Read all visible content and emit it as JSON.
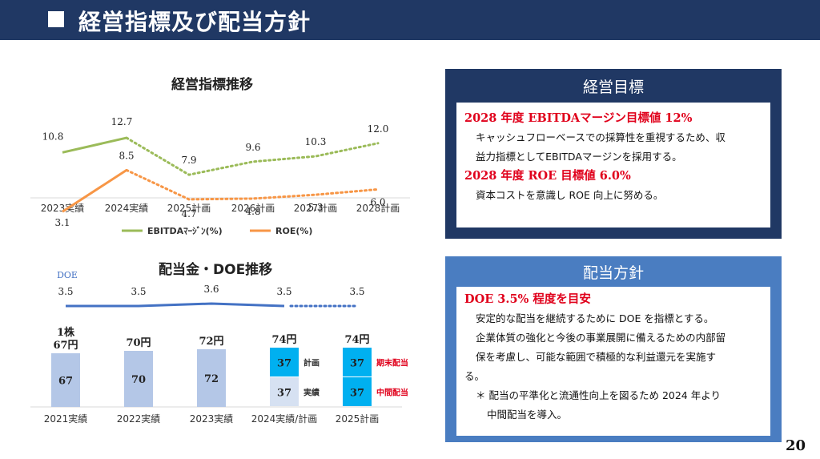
{
  "header": {
    "title": "経営指標及び配当方針"
  },
  "page_number": "20",
  "chart_data": [
    {
      "type": "line",
      "title": "経営指標推移",
      "categories": [
        "2023実績",
        "2024実績",
        "2025計画",
        "2026計画",
        "2027計画",
        "2028計画"
      ],
      "series": [
        {
          "name": "EBITDAﾏｰｼﾞﾝ(%)",
          "values": [
            10.8,
            12.7,
            7.9,
            9.6,
            10.3,
            12.0
          ],
          "labels": [
            "10.8",
            "12.7",
            "7.9",
            "9.6",
            "10.3",
            "12.0"
          ],
          "color": "#9bbb59",
          "actual_points": 2
        },
        {
          "name": "ROE(%)",
          "values": [
            3.1,
            8.5,
            4.7,
            4.8,
            5.3,
            6.0
          ],
          "labels": [
            "3.1",
            "8.5",
            "4.7",
            "4.8",
            "5.3",
            "6.0"
          ],
          "color": "#f79646",
          "actual_points": 2
        }
      ],
      "legend": "bottom"
    },
    {
      "type": "bar",
      "title": "配当金・DOE推移",
      "categories": [
        "2021実績",
        "2022実績",
        "2023実績",
        "2024実績/計画",
        "2025計画"
      ],
      "doe": {
        "label": "DOE",
        "values": [
          3.5,
          3.5,
          3.6,
          3.5,
          3.5
        ],
        "labels": [
          "3.5",
          "3.5",
          "3.6",
          "3.5",
          "3.5"
        ],
        "color": "#4472c4"
      },
      "totals": [
        "1株\n67円",
        "70円",
        "72円",
        "74円",
        "74円"
      ],
      "bars": [
        {
          "segments": [
            {
              "value": 67,
              "label": "67",
              "color": "#b4c7e7"
            }
          ]
        },
        {
          "segments": [
            {
              "value": 70,
              "label": "70",
              "color": "#b4c7e7"
            }
          ]
        },
        {
          "segments": [
            {
              "value": 72,
              "label": "72",
              "color": "#b4c7e7"
            }
          ]
        },
        {
          "segments": [
            {
              "value": 37,
              "label": "37",
              "color": "#d6e1f2",
              "side": "実績"
            },
            {
              "value": 37,
              "label": "37",
              "color": "#00b0f0",
              "side": "計画"
            }
          ]
        },
        {
          "segments": [
            {
              "value": 37,
              "label": "37",
              "color": "#00b0f0",
              "side": "中間配当"
            },
            {
              "value": 37,
              "label": "37",
              "color": "#00b0f0",
              "side": "期末配当"
            }
          ]
        }
      ],
      "side_label_colors": {
        "実績": "#333333",
        "計画": "#333333",
        "中間配当": "#e0001b",
        "期末配当": "#e0001b"
      }
    }
  ],
  "goal_box": {
    "heading": "経営目標",
    "line1": "2028 年度 EBITDAマージン目標値 12%",
    "text1a": "キャッシュフローベースでの採算性を重視するため、収",
    "text1b": "益力指標としてEBITDAマージンを採用する。",
    "line2": "2028 年度 ROE 目標値 6.0%",
    "text2": "資本コストを意識し ROE 向上に努める。"
  },
  "policy_box": {
    "heading": "配当方針",
    "line1": "DOE 3.5% 程度を目安",
    "text1": "安定的な配当を継続するために DOE を指標とする。",
    "text2": "企業体質の強化と今後の事業展開に備えるための内部留",
    "text3": "保を考慮し、可能な範囲で積極的な利益還元を実施す",
    "text4": "る。",
    "note1": "＊ 配当の平準化と流通性向上を図るため 2024 年より",
    "note2": "中間配当を導入。"
  }
}
